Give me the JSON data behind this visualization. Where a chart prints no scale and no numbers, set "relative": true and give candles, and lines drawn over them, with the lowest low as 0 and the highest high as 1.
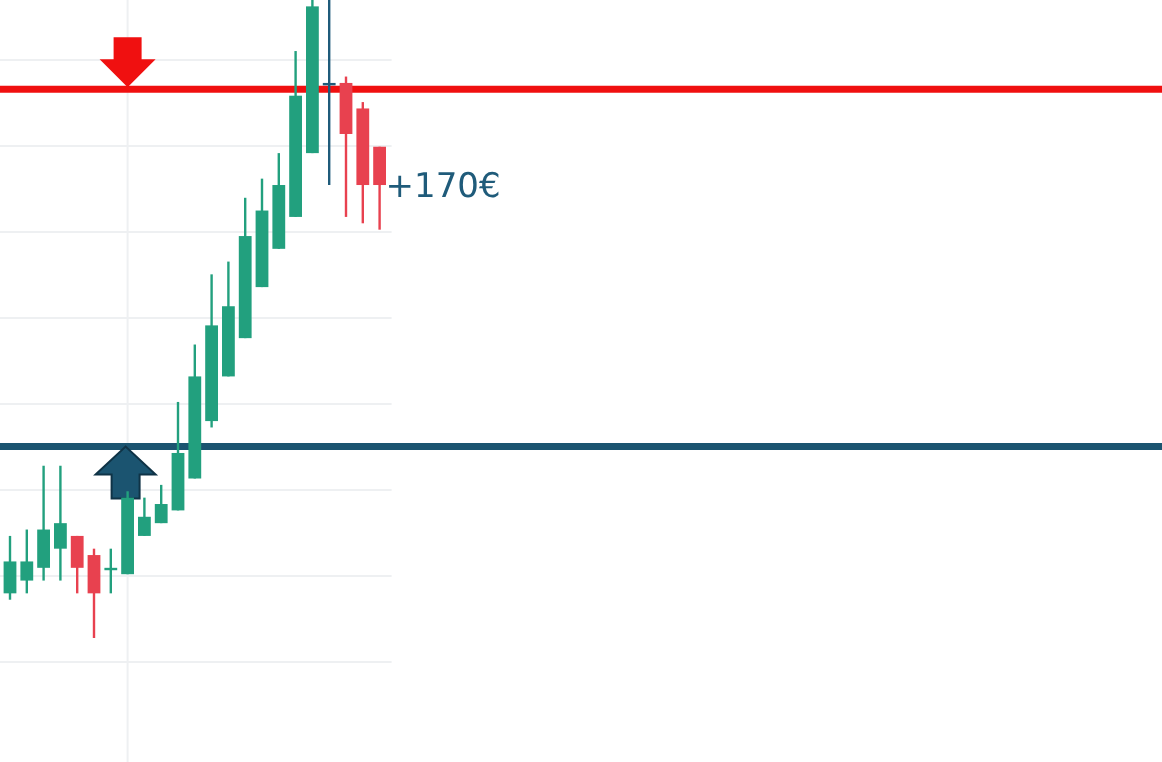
{
  "chart_data": {
    "type": "candlestick",
    "relative": true,
    "grid": true,
    "categories": [
      null,
      null,
      null,
      null,
      null,
      null,
      null,
      null,
      null,
      null,
      null,
      null,
      null,
      null,
      null,
      null,
      null,
      null,
      null,
      null,
      null,
      null,
      null
    ],
    "ohlc": [
      [
        0.07,
        0.16,
        0.06,
        0.12
      ],
      [
        0.09,
        0.17,
        0.07,
        0.12
      ],
      [
        0.11,
        0.27,
        0.09,
        0.17
      ],
      [
        0.14,
        0.27,
        0.09,
        0.18
      ],
      [
        0.16,
        0.16,
        0.07,
        0.11
      ],
      [
        0.13,
        0.14,
        0,
        0.07
      ],
      [
        0.11,
        0.14,
        0.07,
        0.11
      ],
      [
        0.1,
        0.23,
        0.1,
        0.22
      ],
      [
        0.16,
        0.22,
        0.16,
        0.19
      ],
      [
        0.18,
        0.24,
        0.18,
        0.21
      ],
      [
        0.2,
        0.37,
        0.2,
        0.29
      ],
      [
        0.25,
        0.46,
        0.25,
        0.41
      ],
      [
        0.34,
        0.57,
        0.33,
        0.49
      ],
      [
        0.41,
        0.59,
        0.41,
        0.52
      ],
      [
        0.47,
        0.69,
        0.47,
        0.63
      ],
      [
        0.55,
        0.72,
        0.55,
        0.67
      ],
      [
        0.61,
        0.76,
        0.61,
        0.71
      ],
      [
        0.66,
        0.92,
        0.66,
        0.85
      ],
      [
        0.76,
        1,
        0.76,
        0.99
      ],
      [
        0.87,
        1,
        0.71,
        0.87
      ],
      [
        0.87,
        0.88,
        0.66,
        0.79
      ],
      [
        0.83,
        0.84,
        0.65,
        0.71
      ],
      [
        0.77,
        0.77,
        0.64,
        0.71
      ]
    ],
    "colors": [
      "#22a07e",
      "#22a07e",
      "#22a07e",
      "#22a07e",
      "#e8414f",
      "#e8414f",
      "#22a07e",
      "#22a07e",
      "#22a07e",
      "#22a07e",
      "#22a07e",
      "#22a07e",
      "#22a07e",
      "#22a07e",
      "#22a07e",
      "#22a07e",
      "#22a07e",
      "#22a07e",
      "#22a07e",
      "#1f5b7a",
      "#e8414f",
      "#e8414f",
      "#e8414f"
    ],
    "ref_lines": [
      {
        "axis": "y",
        "value": 0.86,
        "color": "#f01010"
      },
      {
        "axis": "y",
        "value": 0.3,
        "color": "#1b5470"
      }
    ],
    "annotations": [
      "+170€"
    ]
  }
}
